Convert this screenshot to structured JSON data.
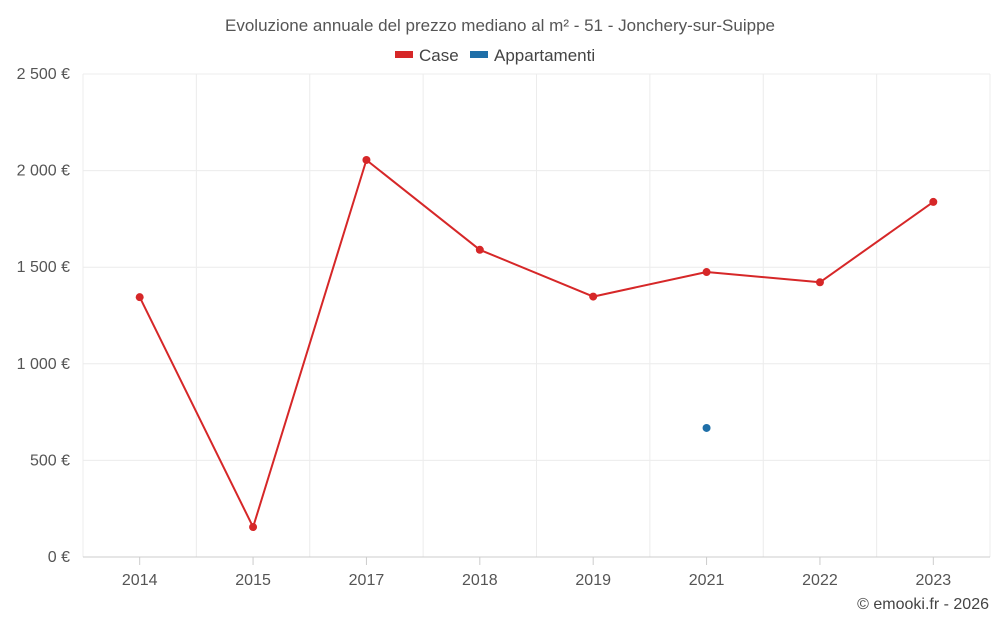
{
  "chart_data": {
    "type": "line",
    "title": "Evoluzione annuale del prezzo mediano al m² - 51 - Jonchery-sur-Suippe",
    "categories": [
      "2014",
      "2015",
      "2017",
      "2018",
      "2019",
      "2021",
      "2022",
      "2023"
    ],
    "series": [
      {
        "name": "Case",
        "color": "#d62728",
        "values": [
          1345,
          155,
          2055,
          1590,
          1348,
          1475,
          1422,
          1838
        ]
      },
      {
        "name": "Appartamenti",
        "color": "#1f6fa8",
        "values": [
          null,
          null,
          null,
          null,
          null,
          668,
          null,
          null
        ]
      }
    ],
    "y_ticks": [
      "0 €",
      "500 €",
      "1 000 €",
      "1 500 €",
      "2 000 €",
      "2 500 €"
    ],
    "ylim": [
      0,
      2500
    ],
    "grid": true,
    "legend_position": "top-center"
  },
  "credit": "© emooki.fr - 2026"
}
